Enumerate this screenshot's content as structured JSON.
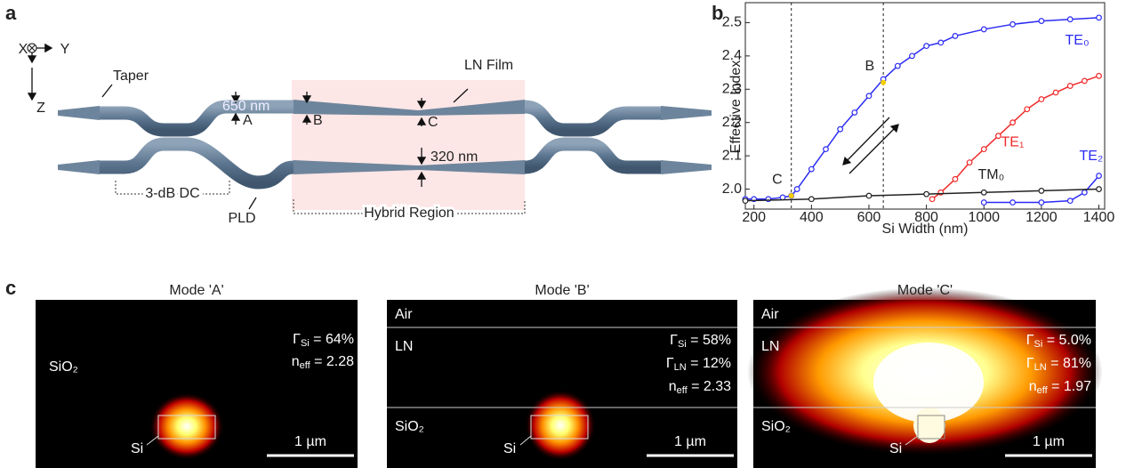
{
  "panel_a": {
    "label": "a",
    "axes": {
      "x": "X",
      "y": "Y",
      "z": "Z"
    },
    "taper": "Taper",
    "width_label": "650 nm",
    "point_a": "A",
    "point_b": "B",
    "point_c": "C",
    "ln_film": "LN Film",
    "gap_label": "320 nm",
    "dc": "3-dB DC",
    "pld": "PLD",
    "hybrid": "Hybrid Region"
  },
  "chart_data": {
    "type": "line",
    "panel_label": "b",
    "x_label": "Si Width (nm)",
    "y_label": "Effective Index",
    "xlim": [
      170,
      1420
    ],
    "xticks": [
      200,
      400,
      600,
      800,
      1000,
      1200,
      1400
    ],
    "ylim": [
      1.94,
      2.56
    ],
    "yticks": [
      {
        "value": 2.0,
        "label": "2.0"
      },
      2.1,
      2.2,
      2.3,
      2.4,
      2.5
    ],
    "series": [
      {
        "name": "TE₀",
        "color": "#2b2bf5",
        "x": [
          170,
          200,
          250,
          300,
          330,
          350,
          400,
          450,
          500,
          550,
          600,
          650,
          700,
          750,
          800,
          850,
          900,
          1000,
          1100,
          1200,
          1300,
          1400
        ],
        "values": [
          1.97,
          1.97,
          1.97,
          1.975,
          1.98,
          2.0,
          2.06,
          2.12,
          2.18,
          2.23,
          2.28,
          2.33,
          2.37,
          2.4,
          2.43,
          2.44,
          2.46,
          2.48,
          2.495,
          2.505,
          2.51,
          2.515
        ]
      },
      {
        "name": "TE₁",
        "color": "#f02a2a",
        "x": [
          820,
          850,
          900,
          950,
          1000,
          1050,
          1100,
          1150,
          1200,
          1250,
          1300,
          1350,
          1400
        ],
        "values": [
          1.97,
          1.99,
          2.03,
          2.08,
          2.12,
          2.16,
          2.2,
          2.24,
          2.27,
          2.29,
          2.31,
          2.325,
          2.34
        ]
      },
      {
        "name": "TE₂",
        "color": "#2b2bf5",
        "x": [
          1000,
          1100,
          1200,
          1300,
          1350,
          1400
        ],
        "values": [
          1.96,
          1.96,
          1.96,
          1.965,
          1.99,
          2.04
        ]
      },
      {
        "name": "TM₀",
        "color": "#222222",
        "x": [
          170,
          400,
          600,
          800,
          1000,
          1200,
          1400
        ],
        "values": [
          1.965,
          1.97,
          1.98,
          1.985,
          1.99,
          1.995,
          2.0
        ]
      }
    ],
    "markers": [
      {
        "label": "C",
        "x": 330,
        "y": 1.98
      },
      {
        "label": "B",
        "x": 650,
        "y": 2.32
      }
    ]
  },
  "panel_c": {
    "label": "c",
    "modes": [
      {
        "title": "Mode 'A'",
        "layers": [
          "SiO₂"
        ],
        "core": "Si",
        "scale": "1 µm",
        "metrics": [
          {
            "base": "Γ",
            "sub": "Si",
            "rest": " = 64%"
          },
          {
            "base": "n",
            "sub": "eff",
            "rest": " = 2.28"
          }
        ]
      },
      {
        "title": "Mode 'B'",
        "layers": [
          "Air",
          "LN",
          "SiO₂"
        ],
        "core": "Si",
        "scale": "1 µm",
        "metrics": [
          {
            "base": "Γ",
            "sub": "Si",
            "rest": " = 58%"
          },
          {
            "base": "Γ",
            "sub": "LN",
            "rest": " = 12%"
          },
          {
            "base": "n",
            "sub": "eff",
            "rest": " = 2.33"
          }
        ]
      },
      {
        "title": "Mode 'C'",
        "layers": [
          "Air",
          "LN",
          "SiO₂"
        ],
        "core": "Si",
        "scale": "1 µm",
        "metrics": [
          {
            "base": "Γ",
            "sub": "Si",
            "rest": " = 5.0%"
          },
          {
            "base": "Γ",
            "sub": "LN",
            "rest": " = 81%"
          },
          {
            "base": "n",
            "sub": "eff",
            "rest": " = 1.97"
          }
        ]
      }
    ]
  }
}
